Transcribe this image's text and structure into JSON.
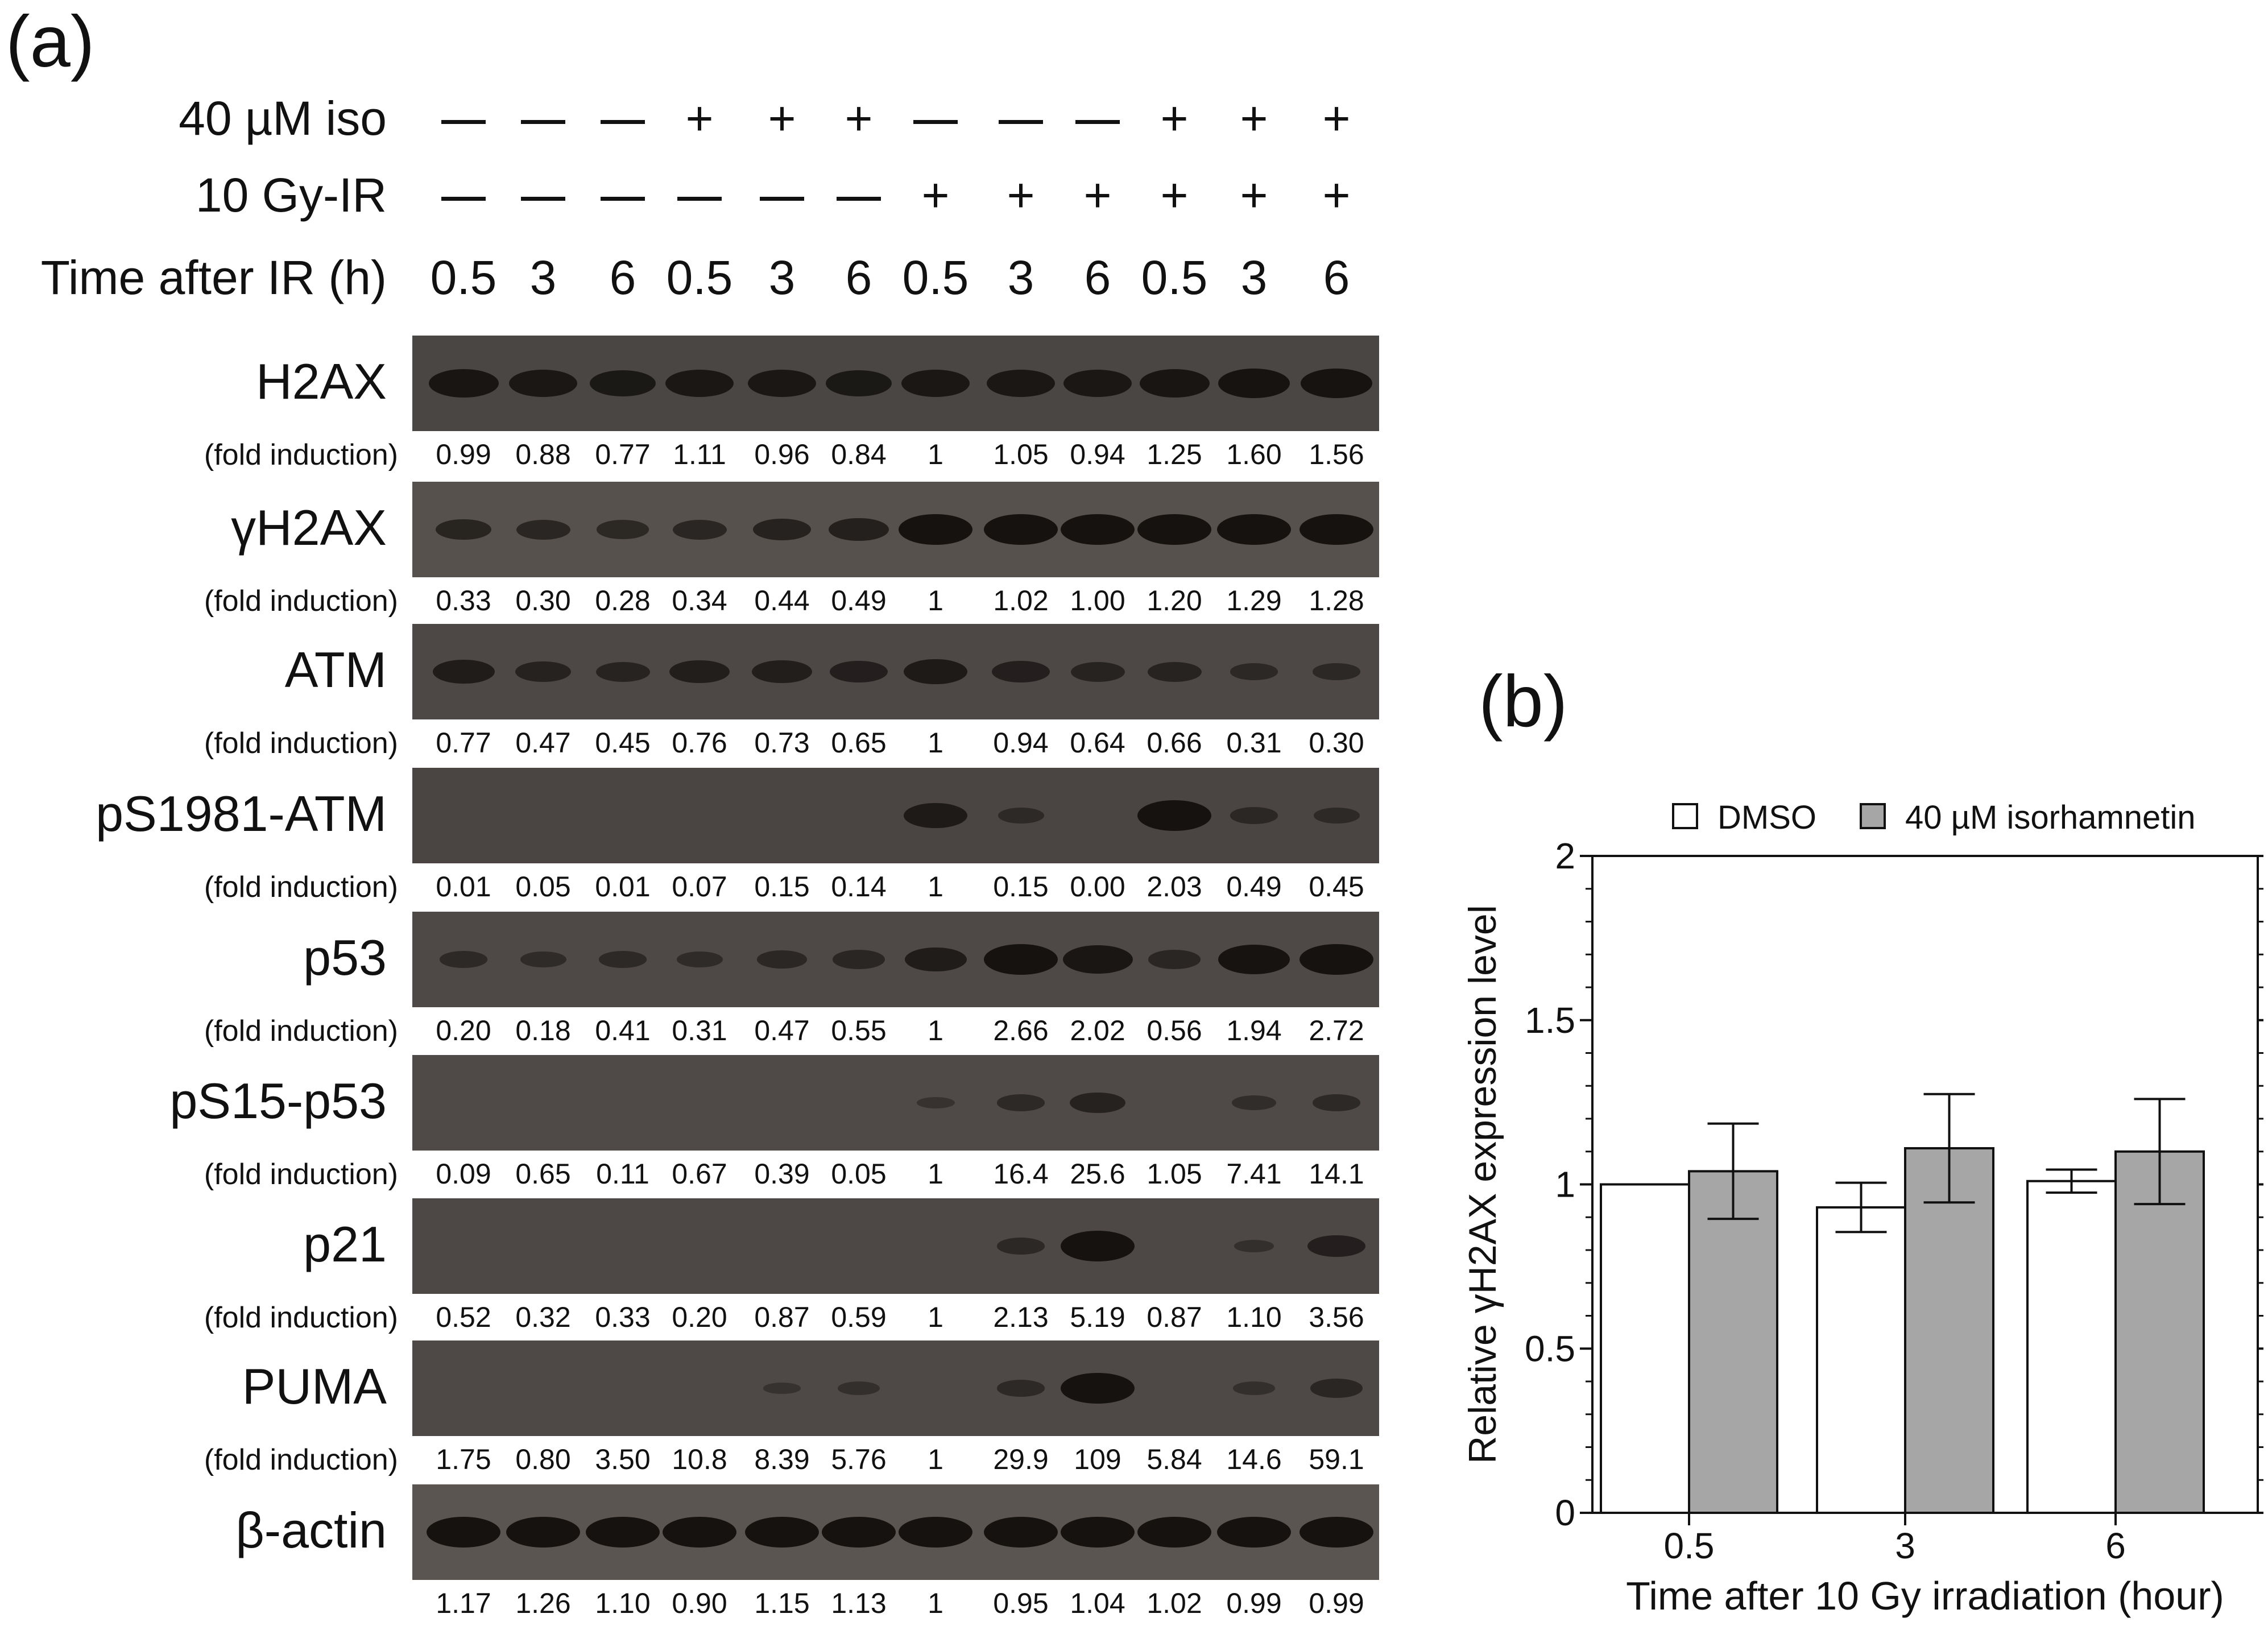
{
  "panel_a": {
    "label": "(a)",
    "conditions": [
      {
        "label": "40 µM iso",
        "values": [
          "—",
          "—",
          "—",
          "+",
          "+",
          "+",
          "—",
          "—",
          "—",
          "+",
          "+",
          "+"
        ]
      },
      {
        "label": "10 Gy-IR",
        "values": [
          "—",
          "—",
          "—",
          "—",
          "—",
          "—",
          "+",
          "+",
          "+",
          "+",
          "+",
          "+"
        ]
      },
      {
        "label": "Time after IR (h)",
        "values": [
          "0.5",
          "3",
          "6",
          "0.5",
          "3",
          "6",
          "0.5",
          "3",
          "6",
          "0.5",
          "3",
          "6"
        ]
      }
    ],
    "blots": [
      {
        "name": "H2AX",
        "fold_label": "(fold induction)",
        "values": [
          "0.99",
          "0.88",
          "0.77",
          "1.11",
          "0.96",
          "0.84",
          "1",
          "1.05",
          "0.94",
          "1.25",
          "1.60",
          "1.56"
        ]
      },
      {
        "name": "γH2AX",
        "fold_label": "(fold induction)",
        "values": [
          "0.33",
          "0.30",
          "0.28",
          "0.34",
          "0.44",
          "0.49",
          "1",
          "1.02",
          "1.00",
          "1.20",
          "1.29",
          "1.28"
        ]
      },
      {
        "name": "ATM",
        "fold_label": "(fold induction)",
        "values": [
          "0.77",
          "0.47",
          "0.45",
          "0.76",
          "0.73",
          "0.65",
          "1",
          "0.94",
          "0.64",
          "0.66",
          "0.31",
          "0.30"
        ]
      },
      {
        "name": "pS1981-ATM",
        "fold_label": "(fold induction)",
        "values": [
          "0.01",
          "0.05",
          "0.01",
          "0.07",
          "0.15",
          "0.14",
          "1",
          "0.15",
          "0.00",
          "2.03",
          "0.49",
          "0.45"
        ]
      },
      {
        "name": "p53",
        "fold_label": "(fold induction)",
        "values": [
          "0.20",
          "0.18",
          "0.41",
          "0.31",
          "0.47",
          "0.55",
          "1",
          "2.66",
          "2.02",
          "0.56",
          "1.94",
          "2.72"
        ]
      },
      {
        "name": "pS15-p53",
        "fold_label": "(fold induction)",
        "values": [
          "0.09",
          "0.65",
          "0.11",
          "0.67",
          "0.39",
          "0.05",
          "1",
          "16.4",
          "25.6",
          "1.05",
          "7.41",
          "14.1"
        ]
      },
      {
        "name": "p21",
        "fold_label": "(fold induction)",
        "values": [
          "0.52",
          "0.32",
          "0.33",
          "0.20",
          "0.87",
          "0.59",
          "1",
          "2.13",
          "5.19",
          "0.87",
          "1.10",
          "3.56"
        ]
      },
      {
        "name": "PUMA",
        "fold_label": "(fold induction)",
        "values": [
          "1.75",
          "0.80",
          "3.50",
          "10.8",
          "8.39",
          "5.76",
          "1",
          "29.9",
          "109",
          "5.84",
          "14.6",
          "59.1"
        ]
      },
      {
        "name": "β-actin",
        "fold_label": "",
        "values": [
          "1.17",
          "1.26",
          "1.10",
          "0.90",
          "1.15",
          "1.13",
          "1",
          "0.95",
          "1.04",
          "1.02",
          "0.99",
          "0.99"
        ]
      }
    ],
    "band_intensity": [
      [
        0.9,
        0.85,
        0.8,
        0.85,
        0.85,
        0.8,
        0.85,
        0.85,
        0.85,
        0.9,
        0.95,
        0.95
      ],
      [
        0.55,
        0.5,
        0.45,
        0.5,
        0.6,
        0.65,
        1,
        1,
        1,
        1,
        1,
        1
      ],
      [
        0.7,
        0.55,
        0.5,
        0.65,
        0.65,
        0.6,
        0.75,
        0.6,
        0.5,
        0.5,
        0.35,
        0.35
      ],
      [
        0,
        0,
        0,
        0,
        0,
        0,
        0.75,
        0.3,
        0,
        1,
        0.35,
        0.3
      ],
      [
        0.35,
        0.3,
        0.35,
        0.3,
        0.4,
        0.45,
        0.7,
        1,
        0.9,
        0.45,
        0.95,
        1
      ],
      [
        0,
        0,
        0,
        0,
        0,
        0,
        0.1,
        0.35,
        0.55,
        0,
        0.25,
        0.35
      ],
      [
        0,
        0,
        0,
        0,
        0,
        0,
        0,
        0.35,
        1,
        0,
        0.15,
        0.6
      ],
      [
        0,
        0,
        0,
        0,
        0.08,
        0.2,
        0,
        0.35,
        1,
        0,
        0.2,
        0.45
      ],
      [
        1,
        1,
        1,
        1,
        1,
        1,
        1,
        1,
        1,
        1,
        1,
        1
      ]
    ]
  },
  "panel_b": {
    "label": "(b)"
  },
  "chart_data": {
    "type": "bar",
    "categories": [
      "0.5",
      "3",
      "6"
    ],
    "series": [
      {
        "name": "DMSO",
        "values": [
          1.0,
          0.93,
          1.01
        ],
        "errors": [
          0.0,
          0.075,
          0.035
        ],
        "color": "#ffffff"
      },
      {
        "name": "40 µM isorhamnetin",
        "values": [
          1.04,
          1.11,
          1.1
        ],
        "errors": [
          0.145,
          0.165,
          0.16
        ],
        "color": "#a6a6a6"
      }
    ],
    "xlabel": "Time after 10 Gy irradiation (hour)",
    "ylabel": "Relative γH2AX expression level",
    "ylim": [
      0,
      2
    ],
    "yticks": [
      "0",
      "0.5",
      "1",
      "1.5",
      "2"
    ],
    "legend_position": "top"
  }
}
